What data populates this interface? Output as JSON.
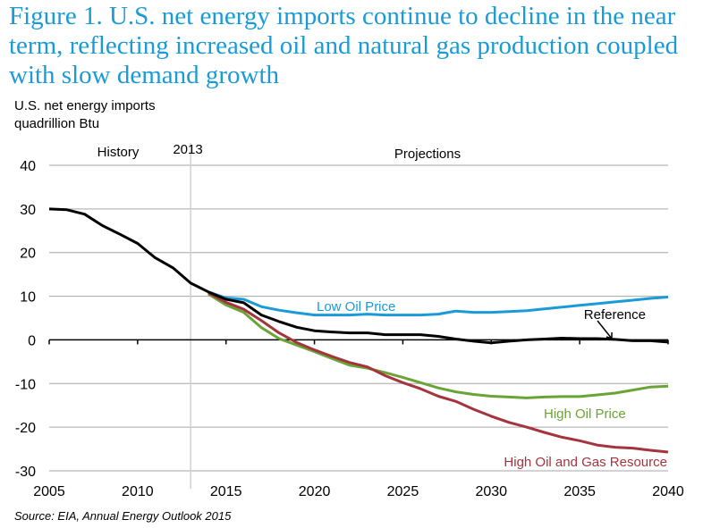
{
  "title": "Figure 1. U.S. net energy imports continue to decline in the near term, reflecting increased oil and natural gas production coupled with slow demand growth",
  "source": "Source:  EIA, Annual Energy Outlook 2015",
  "chart_data": {
    "type": "line",
    "ylabel_line1": "U.S. net energy imports",
    "ylabel_line2": "quadrillion  Btu",
    "xlim": [
      2005,
      2040
    ],
    "ylim": [
      -30,
      40
    ],
    "x_ticks": [
      2005,
      2010,
      2015,
      2020,
      2025,
      2030,
      2035,
      2040
    ],
    "y_ticks": [
      -30,
      -20,
      -10,
      0,
      10,
      20,
      30,
      40
    ],
    "grid": "horizontal",
    "annotations": {
      "history": "History",
      "divider_year": "2013",
      "projections": "Projections"
    },
    "divider_x": 2013,
    "series": [
      {
        "name": "Low Oil Price",
        "color": "#1a9bd7",
        "x": [
          2014,
          2015,
          2016,
          2017,
          2018,
          2019,
          2020,
          2021,
          2022,
          2023,
          2024,
          2025,
          2026,
          2027,
          2028,
          2029,
          2030,
          2031,
          2032,
          2033,
          2034,
          2035,
          2036,
          2037,
          2038,
          2039,
          2040
        ],
        "values": [
          11.0,
          9.6,
          9.3,
          7.6,
          6.8,
          6.2,
          5.7,
          5.7,
          5.7,
          5.9,
          5.7,
          5.7,
          5.7,
          5.9,
          6.6,
          6.3,
          6.3,
          6.5,
          6.7,
          7.1,
          7.5,
          7.9,
          8.3,
          8.7,
          9.1,
          9.5,
          9.8
        ]
      },
      {
        "name": "High Oil Price",
        "color": "#6aa336",
        "x": [
          2014,
          2015,
          2016,
          2017,
          2018,
          2019,
          2020,
          2021,
          2022,
          2023,
          2024,
          2025,
          2026,
          2027,
          2028,
          2029,
          2030,
          2031,
          2032,
          2033,
          2034,
          2035,
          2036,
          2037,
          2038,
          2039,
          2040
        ],
        "values": [
          10.5,
          8.0,
          6.3,
          2.8,
          0.3,
          -1.2,
          -2.7,
          -4.3,
          -5.8,
          -6.5,
          -7.5,
          -8.6,
          -9.8,
          -11.0,
          -11.9,
          -12.5,
          -12.9,
          -13.1,
          -13.3,
          -13.1,
          -13.0,
          -13.0,
          -12.6,
          -12.2,
          -11.5,
          -10.8,
          -10.6
        ]
      },
      {
        "name": "High Oil and Gas Resource",
        "color": "#a4343e",
        "x": [
          2014,
          2015,
          2016,
          2017,
          2018,
          2019,
          2020,
          2021,
          2022,
          2023,
          2024,
          2025,
          2026,
          2027,
          2028,
          2029,
          2030,
          2031,
          2032,
          2033,
          2034,
          2035,
          2036,
          2037,
          2038,
          2039,
          2040
        ],
        "values": [
          10.8,
          8.6,
          7.0,
          4.4,
          1.6,
          -0.6,
          -2.3,
          -3.8,
          -5.2,
          -6.2,
          -8.2,
          -9.8,
          -11.2,
          -12.9,
          -14.1,
          -15.9,
          -17.5,
          -18.9,
          -20.0,
          -21.2,
          -22.3,
          -23.1,
          -24.1,
          -24.6,
          -24.8,
          -25.3,
          -25.7
        ]
      },
      {
        "name": "Reference",
        "color": "#000000",
        "x": [
          2005,
          2006,
          2007,
          2008,
          2009,
          2010,
          2011,
          2012,
          2013,
          2014,
          2015,
          2016,
          2017,
          2018,
          2019,
          2020,
          2021,
          2022,
          2023,
          2024,
          2025,
          2026,
          2027,
          2028,
          2029,
          2030,
          2031,
          2032,
          2033,
          2034,
          2035,
          2036,
          2037,
          2038,
          2039,
          2040
        ],
        "values": [
          30.0,
          29.8,
          28.8,
          26.2,
          24.2,
          22.1,
          18.8,
          16.5,
          13.0,
          11.0,
          9.3,
          8.5,
          5.7,
          4.2,
          2.9,
          2.1,
          1.8,
          1.6,
          1.6,
          1.2,
          1.2,
          1.2,
          0.8,
          0.2,
          -0.3,
          -0.7,
          -0.3,
          0.0,
          0.2,
          0.4,
          0.3,
          0.3,
          0.1,
          -0.2,
          -0.2,
          -0.5
        ]
      }
    ]
  }
}
